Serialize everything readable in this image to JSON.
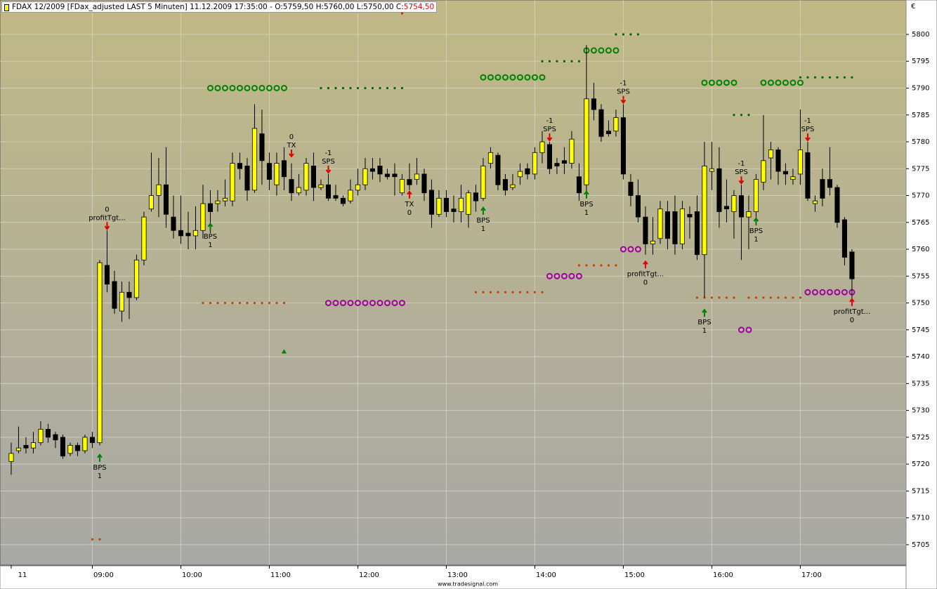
{
  "chart_data": {
    "type": "candlestick",
    "title": "FDAX 12/2009 [FDax_adjusted LAST 5 Minuten] 11.12.2009 17:35:00 - O:5759,50 H:5760,00 L:5750,00 C:",
    "title_close": "5754,50",
    "currency": "€",
    "footer": "www.tradesignal.com",
    "up_color": "#ffff00",
    "down_color": "#000000",
    "grid": true,
    "xlim": [
      477.4,
      1091.7
    ],
    "ylim": [
      5701.2,
      5806.4
    ],
    "yticks": [
      5705,
      5710,
      5715,
      5720,
      5725,
      5730,
      5735,
      5740,
      5745,
      5750,
      5755,
      5760,
      5765,
      5770,
      5775,
      5780,
      5785,
      5790,
      5795,
      5800
    ],
    "xticks": [
      {
        "value": 485,
        "label": "11"
      },
      {
        "value": 540,
        "label": "09:00"
      },
      {
        "value": 600,
        "label": "10:00"
      },
      {
        "value": 660,
        "label": "11:00"
      },
      {
        "value": 720,
        "label": "12:00"
      },
      {
        "value": 780,
        "label": "13:00"
      },
      {
        "value": 840,
        "label": "14:00"
      },
      {
        "value": 900,
        "label": "15:00"
      },
      {
        "value": 960,
        "label": "16:00"
      },
      {
        "value": 1020,
        "label": "17:00"
      }
    ],
    "x": [
      485,
      490,
      495,
      500,
      505,
      510,
      515,
      520,
      525,
      530,
      535,
      540,
      545,
      550,
      555,
      560,
      565,
      570,
      575,
      580,
      585,
      590,
      595,
      600,
      605,
      610,
      615,
      620,
      625,
      630,
      635,
      640,
      645,
      650,
      655,
      660,
      665,
      670,
      675,
      680,
      685,
      690,
      695,
      700,
      705,
      710,
      715,
      720,
      725,
      730,
      735,
      740,
      745,
      750,
      755,
      760,
      765,
      770,
      775,
      780,
      785,
      790,
      795,
      800,
      805,
      810,
      815,
      820,
      825,
      830,
      835,
      840,
      845,
      850,
      855,
      860,
      865,
      870,
      875,
      880,
      885,
      890,
      895,
      900,
      905,
      910,
      915,
      920,
      925,
      930,
      935,
      940,
      945,
      950,
      955,
      960,
      965,
      970,
      975,
      980,
      985,
      990,
      995,
      1000,
      1005,
      1010,
      1015,
      1020,
      1025,
      1030,
      1035,
      1040,
      1045,
      1050,
      1055
    ],
    "open": [
      5720.5,
      5722.5,
      5723.5,
      5723,
      5724,
      5726.5,
      5725.5,
      5725,
      5722,
      5723.5,
      5722.5,
      5725,
      5724,
      5757,
      5754,
      5748.5,
      5752,
      5751,
      5758,
      5767.5,
      5770,
      5772,
      5766,
      5763.5,
      5763,
      5762.5,
      5763.5,
      5768.5,
      5768.5,
      5769,
      5769,
      5776,
      5775.5,
      5771,
      5781.5,
      5776,
      5772,
      5776.5,
      5773,
      5770.5,
      5771,
      5775.5,
      5771.5,
      5772,
      5770,
      5769.5,
      5769,
      5771,
      5772,
      5775,
      5775.5,
      5774,
      5774,
      5770.5,
      5773,
      5773,
      5774,
      5771,
      5766.5,
      5769.5,
      5767.5,
      5767,
      5766.5,
      5770.5,
      5769.5,
      5776,
      5777.5,
      5773,
      5771.5,
      5773.5,
      5775,
      5774,
      5778,
      5779.5,
      5776,
      5776.5,
      5776,
      5773.5,
      5772,
      5788,
      5786,
      5782,
      5782,
      5784.5,
      5772.5,
      5770,
      5766,
      5761,
      5762,
      5767,
      5767,
      5761,
      5766.5,
      5767,
      5759,
      5774.5,
      5775,
      5768,
      5767,
      5770,
      5766,
      5767,
      5772.5,
      5777,
      5778.5,
      5774.5,
      5773,
      5774,
      5778,
      5768.5,
      5773,
      5773,
      5771.5,
      5765.5,
      5759.5
    ],
    "high": [
      5724,
      5727,
      5725,
      5726,
      5728,
      5727.5,
      5726,
      5725.5,
      5724,
      5724,
      5725.5,
      5726,
      5758,
      5763.5,
      5756,
      5754,
      5754,
      5759,
      5767,
      5778,
      5777,
      5779,
      5770,
      5770,
      5767,
      5768,
      5772,
      5771,
      5771,
      5773,
      5778,
      5778,
      5777,
      5787,
      5786,
      5778,
      5778,
      5779,
      5776,
      5774,
      5777,
      5778,
      5773,
      5774,
      5772,
      5770,
      5773,
      5775,
      5777,
      5777,
      5777,
      5775,
      5776,
      5774,
      5776,
      5777,
      5775,
      5773,
      5771,
      5771,
      5770,
      5772,
      5771,
      5772,
      5777,
      5779,
      5778,
      5774,
      5774,
      5776,
      5776,
      5779,
      5782,
      5780,
      5777,
      5779,
      5782,
      5776,
      5798,
      5791,
      5787,
      5784,
      5786,
      5787,
      5774,
      5773,
      5768,
      5766,
      5769,
      5769,
      5770,
      5769,
      5768,
      5770,
      5780,
      5780,
      5779,
      5773,
      5771,
      5772,
      5770,
      5774,
      5785,
      5780,
      5779,
      5776,
      5775,
      5786,
      5780,
      5770,
      5775,
      5779,
      5772,
      5766,
      5760
    ],
    "low": [
      5718,
      5722,
      5722,
      5722,
      5723.5,
      5724,
      5723,
      5721,
      5721.5,
      5721.5,
      5722,
      5723,
      5723.5,
      5752,
      5748,
      5746.5,
      5747,
      5750.5,
      5757,
      5767,
      5766,
      5764,
      5762,
      5761,
      5760,
      5760,
      5762,
      5763,
      5767,
      5768,
      5768,
      5773,
      5769,
      5770.5,
      5772,
      5771,
      5770,
      5771,
      5769,
      5770,
      5770,
      5769,
      5771,
      5769,
      5769,
      5768,
      5768.5,
      5770,
      5771,
      5773,
      5772.5,
      5773,
      5770,
      5770,
      5771,
      5772,
      5769,
      5764,
      5766,
      5766,
      5765,
      5765,
      5764,
      5767,
      5769,
      5775,
      5771,
      5770,
      5771,
      5772,
      5773,
      5773,
      5776,
      5774,
      5774,
      5774,
      5775,
      5769,
      5770,
      5784,
      5780,
      5781,
      5781,
      5773,
      5768,
      5765,
      5759,
      5759,
      5761,
      5760,
      5759,
      5760,
      5762,
      5758,
      5751,
      5771,
      5764,
      5765,
      5762,
      5758,
      5760,
      5765,
      5771,
      5773,
      5772,
      5772,
      5772,
      5772,
      5769,
      5767,
      5768,
      5770,
      5764,
      5757,
      5750
    ],
    "close": [
      5722,
      5723,
      5723,
      5724,
      5726.5,
      5725,
      5724.5,
      5721.5,
      5723.5,
      5722.5,
      5725,
      5724,
      5757.5,
      5753.5,
      5749,
      5752,
      5751,
      5758,
      5766,
      5770,
      5772,
      5766.5,
      5763.5,
      5762.5,
      5762.5,
      5763.5,
      5768.5,
      5767,
      5769,
      5769.5,
      5776,
      5775,
      5771,
      5782.5,
      5776.5,
      5773,
      5776,
      5773.5,
      5770.5,
      5771.5,
      5776,
      5771.5,
      5772,
      5769.5,
      5769.5,
      5768.5,
      5771,
      5772,
      5775,
      5774.5,
      5774,
      5773.5,
      5773.5,
      5773,
      5772,
      5774,
      5770.5,
      5766.5,
      5769.5,
      5767,
      5767,
      5769.5,
      5770.5,
      5769,
      5775.5,
      5778,
      5772,
      5771,
      5772,
      5774.5,
      5774,
      5778,
      5780,
      5775,
      5775.5,
      5776,
      5780.5,
      5770.5,
      5788,
      5786,
      5781,
      5781.5,
      5784.5,
      5774,
      5770,
      5766,
      5761,
      5761.5,
      5767.5,
      5762,
      5761,
      5767.5,
      5766,
      5759,
      5775.5,
      5775,
      5767,
      5767.5,
      5770,
      5766,
      5767,
      5773,
      5776.5,
      5778.5,
      5774.5,
      5774,
      5773.5,
      5778.5,
      5769.5,
      5769,
      5769.5,
      5771.5,
      5765,
      5758.5,
      5754.5
    ],
    "levels": [
      {
        "style": "ring",
        "color": "#008000",
        "value": 5790,
        "from": 620,
        "to": 670
      },
      {
        "style": "dot",
        "color": "#006400",
        "value": 5790,
        "from": 695,
        "to": 750
      },
      {
        "style": "dot",
        "color": "#c84000",
        "value": 5750,
        "from": 615,
        "to": 670
      },
      {
        "style": "ring",
        "color": "#a000a0",
        "value": 5750,
        "from": 700,
        "to": 750
      },
      {
        "style": "ring",
        "color": "#008000",
        "value": 5792,
        "from": 805,
        "to": 845
      },
      {
        "style": "dot",
        "color": "#c84000",
        "value": 5752,
        "from": 800,
        "to": 845
      },
      {
        "style": "dot",
        "color": "#006400",
        "value": 5795,
        "from": 845,
        "to": 870
      },
      {
        "style": "ring",
        "color": "#a000a0",
        "value": 5755,
        "from": 850,
        "to": 870
      },
      {
        "style": "dot",
        "color": "#c84000",
        "value": 5757,
        "from": 870,
        "to": 895
      },
      {
        "style": "ring",
        "color": "#008000",
        "value": 5797,
        "from": 875,
        "to": 895
      },
      {
        "style": "dot",
        "color": "#006400",
        "value": 5800,
        "from": 895,
        "to": 910
      },
      {
        "style": "ring",
        "color": "#a000a0",
        "value": 5760,
        "from": 900,
        "to": 910
      },
      {
        "style": "ring",
        "color": "#008000",
        "value": 5791,
        "from": 955,
        "to": 975
      },
      {
        "style": "dot",
        "color": "#c84000",
        "value": 5751,
        "from": 950,
        "to": 975
      },
      {
        "style": "dot",
        "color": "#006400",
        "value": 5785,
        "from": 975,
        "to": 985
      },
      {
        "style": "ring",
        "color": "#a000a0",
        "value": 5745,
        "from": 980,
        "to": 985
      },
      {
        "style": "ring",
        "color": "#008000",
        "value": 5791,
        "from": 995,
        "to": 1020
      },
      {
        "style": "dot",
        "color": "#c84000",
        "value": 5751,
        "from": 985,
        "to": 1020
      },
      {
        "style": "dot",
        "color": "#006400",
        "value": 5792,
        "from": 1020,
        "to": 1055
      },
      {
        "style": "ring",
        "color": "#a000a0",
        "value": 5752,
        "from": 1025,
        "to": 1055
      },
      {
        "style": "dot",
        "color": "#c84000",
        "value": 5706,
        "from": 540,
        "to": 545
      }
    ],
    "markers": [
      {
        "x": 750,
        "y": 5804,
        "shape": "down",
        "color": "#e00000"
      },
      {
        "x": 670,
        "y": 5741,
        "shape": "up",
        "color": "#008000"
      }
    ],
    "annotations": [
      {
        "x": 545,
        "y": 5722,
        "side": "below",
        "color": "#008000",
        "lines": [
          "BPS",
          "1"
        ]
      },
      {
        "x": 550,
        "y": 5763.5,
        "side": "above",
        "color": "#e00000",
        "lines": [
          "0",
          "profitTgt..."
        ]
      },
      {
        "x": 620,
        "y": 5765,
        "side": "below",
        "color": "#008000",
        "lines": [
          "BPS",
          "1"
        ]
      },
      {
        "x": 675,
        "y": 5777,
        "side": "above",
        "color": "#e00000",
        "lines": [
          "0",
          "TX"
        ]
      },
      {
        "x": 700,
        "y": 5774,
        "side": "above",
        "color": "#e00000",
        "lines": [
          "-1",
          "SPS"
        ]
      },
      {
        "x": 755,
        "y": 5771,
        "side": "below",
        "color": "#e00000",
        "lines": [
          "TX",
          "0"
        ]
      },
      {
        "x": 805,
        "y": 5768,
        "side": "below",
        "color": "#008000",
        "lines": [
          "BPS",
          "1"
        ]
      },
      {
        "x": 850,
        "y": 5780,
        "side": "above",
        "color": "#e00000",
        "lines": [
          "-1",
          "SPS"
        ]
      },
      {
        "x": 875,
        "y": 5771,
        "side": "below",
        "color": "#008000",
        "lines": [
          "BPS",
          "1"
        ]
      },
      {
        "x": 900,
        "y": 5787,
        "side": "above",
        "color": "#e00000",
        "lines": [
          "-1",
          "SPS"
        ]
      },
      {
        "x": 915,
        "y": 5758,
        "side": "below",
        "color": "#e00000",
        "lines": [
          "profitTgt...",
          "0"
        ]
      },
      {
        "x": 955,
        "y": 5749,
        "side": "below",
        "color": "#008000",
        "lines": [
          "BPS",
          "1"
        ]
      },
      {
        "x": 980,
        "y": 5772,
        "side": "above",
        "color": "#e00000",
        "lines": [
          "-1",
          "SPS"
        ]
      },
      {
        "x": 990,
        "y": 5766,
        "side": "below",
        "color": "#008000",
        "lines": [
          "BPS",
          "1"
        ]
      },
      {
        "x": 1025,
        "y": 5780,
        "side": "above",
        "color": "#e00000",
        "lines": [
          "-1",
          "SPS"
        ]
      },
      {
        "x": 1055,
        "y": 5751,
        "side": "below",
        "color": "#e00000",
        "lines": [
          "profitTgt...",
          "0"
        ]
      }
    ]
  }
}
